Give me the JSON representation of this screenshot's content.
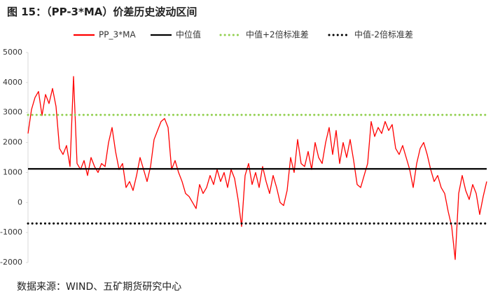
{
  "chart_data": {
    "type": "line",
    "title": "图 15：（PP-3*MA）价差历史波动区间",
    "source": "数据来源：WIND、五矿期货研究中心",
    "ylim": [
      -2000,
      5000
    ],
    "yticks": [
      -2000,
      -1000,
      0,
      1000,
      2000,
      3000,
      4000,
      5000
    ],
    "series": [
      {
        "name": "PP_3*MA",
        "color": "#ff0000",
        "style": "solid",
        "values": [
          2300,
          3100,
          3500,
          3700,
          2900,
          3600,
          3300,
          3800,
          3200,
          1800,
          1600,
          1900,
          1200,
          4200,
          1300,
          1100,
          1400,
          900,
          1500,
          1200,
          1000,
          1300,
          1200,
          2000,
          2500,
          1700,
          1100,
          1300,
          500,
          700,
          400,
          900,
          1500,
          1100,
          700,
          1200,
          2100,
          2400,
          2700,
          2800,
          2500,
          1100,
          1400,
          1000,
          700,
          300,
          200,
          0,
          -200,
          600,
          300,
          500,
          900,
          600,
          1100,
          700,
          1000,
          500,
          1100,
          800,
          100,
          -800,
          900,
          1300,
          600,
          1000,
          500,
          1200,
          700,
          300,
          900,
          500,
          0,
          -100,
          400,
          1500,
          1000,
          2100,
          1300,
          1200,
          1700,
          1100,
          2000,
          1500,
          1300,
          2000,
          2500,
          1600,
          2400,
          1300,
          2000,
          1500,
          2100,
          1400,
          600,
          500,
          900,
          1300,
          2700,
          2200,
          2500,
          2300,
          2700,
          2400,
          2600,
          1800,
          1600,
          1900,
          1500,
          1100,
          500,
          1300,
          1800,
          2000,
          1600,
          1100,
          700,
          900,
          500,
          300,
          -300,
          -800,
          -1900,
          300,
          900,
          400,
          100,
          600,
          300,
          -400,
          200,
          700
        ]
      },
      {
        "name": "中位值",
        "color": "#000000",
        "style": "solid",
        "value": 1120
      },
      {
        "name": "中值+2倍标准差",
        "color": "#92d050",
        "style": "dotted",
        "value": 2920
      },
      {
        "name": "中值-2倍标准差",
        "color": "#000000",
        "style": "dotted",
        "value": -700
      }
    ]
  }
}
